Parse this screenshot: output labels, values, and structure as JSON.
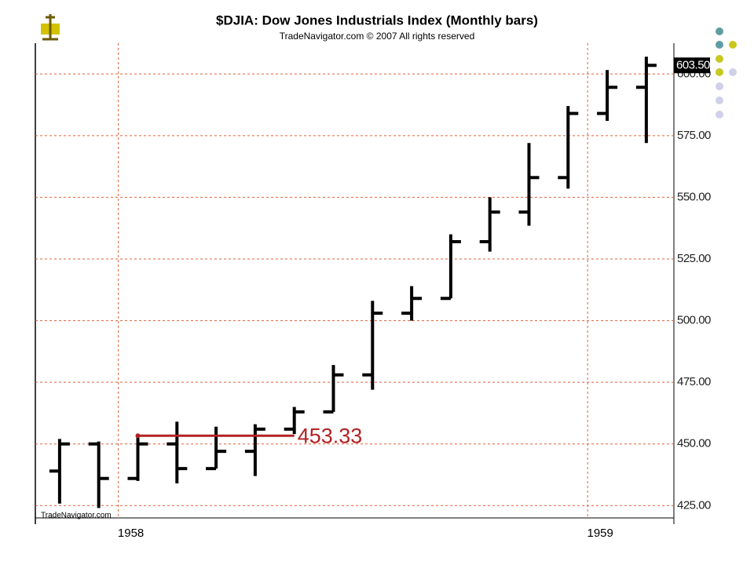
{
  "chart_data": {
    "type": "ohlc",
    "title": "$DJIA:  Dow Jones Industrials Index  (Monthly bars)",
    "subtitle": "TradeNavigator.com © 2007 All rights reserved",
    "watermark": "TradeNavigator.com",
    "categories": [
      null,
      null,
      "1958",
      null,
      null,
      null,
      null,
      null,
      null,
      null,
      null,
      null,
      null,
      null,
      "1959",
      null
    ],
    "series": [
      {
        "name": "$DJIA",
        "color": "#000000",
        "open": [
          439,
          450,
          436,
          450,
          440,
          447,
          456,
          463,
          478,
          503,
          509,
          532,
          544,
          558,
          584,
          594.6
        ],
        "high": [
          452,
          451,
          453.3,
          459,
          457,
          458,
          465,
          482,
          508,
          514,
          535,
          550,
          572,
          587,
          601.6,
          607
        ],
        "low": [
          425.8,
          424,
          435,
          434,
          440,
          437,
          454,
          463,
          472,
          500,
          509,
          528,
          538.5,
          553.5,
          581,
          572
        ],
        "close": [
          450,
          436,
          450,
          440,
          447,
          456,
          463,
          478,
          503,
          509,
          532,
          544,
          558,
          584,
          594.6,
          603.5
        ]
      }
    ],
    "ylim": [
      420,
      612.5
    ],
    "yticks": [
      {
        "value": 425,
        "label": "425.00"
      },
      {
        "value": 450,
        "label": "450.00"
      },
      {
        "value": 475,
        "label": "475.00"
      },
      {
        "value": 500,
        "label": "500.00"
      },
      {
        "value": 525,
        "label": "525.00"
      },
      {
        "value": 550,
        "label": "550.00"
      },
      {
        "value": 575,
        "label": "575.00"
      },
      {
        "value": 600,
        "label": "600.00"
      }
    ],
    "grid": true,
    "grid_color": "#e0603a",
    "last_price": {
      "value": 603.5,
      "label": "603.50"
    },
    "annotation": {
      "value": 453.33,
      "label": "453.33",
      "color": "#b22222"
    }
  }
}
